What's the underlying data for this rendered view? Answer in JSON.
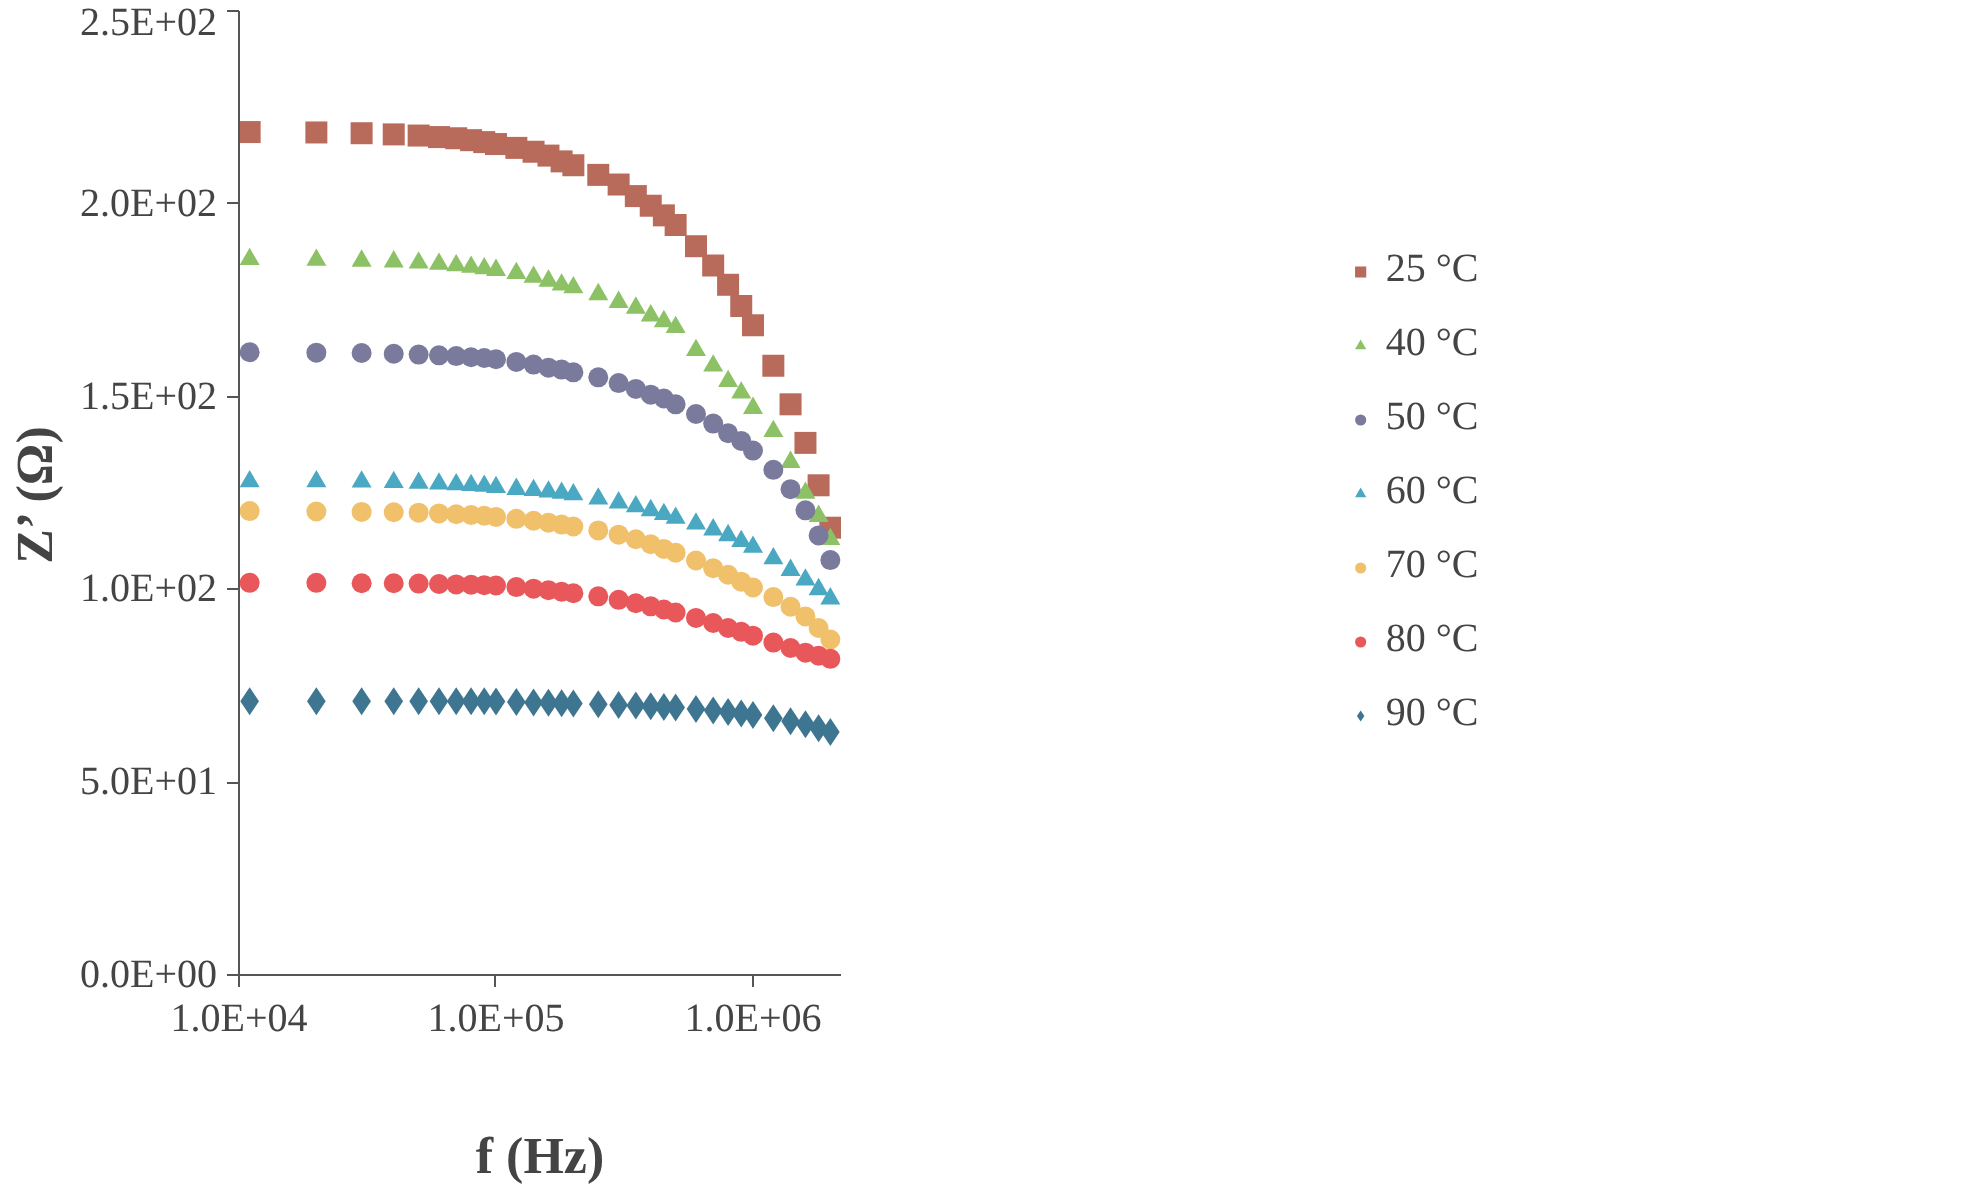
{
  "chart_data": {
    "type": "scatter",
    "xlabel": "f (Hz)",
    "ylabel": "Z’ (Ω)",
    "log": "x",
    "grid": false,
    "legend": "right",
    "xlim": [
      10000,
      2200000
    ],
    "xticks": [
      {
        "value": 10000,
        "label": "1.0E+04"
      },
      {
        "value": 100000,
        "label": "1.0E+05"
      },
      {
        "value": 1000000,
        "label": "1.0E+06"
      }
    ],
    "ylim": [
      0,
      250
    ],
    "yticks": [
      {
        "value": 0,
        "label": "0.0E+00"
      },
      {
        "value": 50,
        "label": "5.0E+01"
      },
      {
        "value": 100,
        "label": "1.0E+02"
      },
      {
        "value": 150,
        "label": "1.5E+02"
      },
      {
        "value": 200,
        "label": "2.0E+02"
      },
      {
        "value": 250,
        "label": "2.5E+02"
      }
    ],
    "x": [
      11000,
      20000,
      30000,
      40000,
      50000,
      60000,
      70000,
      80000,
      90000,
      100000,
      120000,
      140000,
      160000,
      180000,
      200000,
      250000,
      300000,
      350000,
      400000,
      450000,
      500000,
      600000,
      700000,
      800000,
      900000,
      1000000,
      1200000,
      1400000,
      1600000,
      1800000,
      2000000
    ],
    "series": [
      {
        "name": "25 °C",
        "color": "#b86b5a",
        "marker": "square",
        "values": [
          218.6,
          218.5,
          218.3,
          218,
          217.7,
          217.3,
          217,
          216.5,
          216,
          215.5,
          214.5,
          213.5,
          212.5,
          211,
          210,
          207.5,
          205,
          202,
          199.5,
          197,
          194.5,
          189,
          184,
          179,
          173.5,
          168.5,
          158,
          148,
          138,
          127,
          116
        ]
      },
      {
        "name": "40 °C",
        "color": "#8dc165",
        "marker": "triangle",
        "values": [
          185.6,
          185.4,
          185.2,
          185,
          184.7,
          184.4,
          184,
          183.6,
          183.2,
          182.8,
          182,
          181,
          180,
          179,
          178.3,
          176.5,
          174.5,
          173,
          171,
          169.5,
          168,
          162,
          158,
          154,
          151,
          147,
          141,
          133,
          125,
          119,
          113
        ]
      },
      {
        "name": "50 °C",
        "color": "#7a7a9c",
        "marker": "circle",
        "values": [
          161.5,
          161.4,
          161.3,
          161.1,
          160.9,
          160.7,
          160.5,
          160.2,
          160,
          159.7,
          159,
          158.3,
          157.5,
          157,
          156.3,
          155,
          153.5,
          152,
          150.5,
          149.5,
          148,
          145.5,
          143,
          140.5,
          138.5,
          136,
          131,
          126,
          120.5,
          114,
          107.6
        ]
      },
      {
        "name": "60 °C",
        "color": "#4aa8c2",
        "marker": "triangle",
        "values": [
          128,
          128,
          127.9,
          127.8,
          127.6,
          127.4,
          127.2,
          127,
          126.8,
          126.5,
          126,
          125.7,
          125.3,
          125,
          124.6,
          123.5,
          122.5,
          121.5,
          120.5,
          119.5,
          118.5,
          117,
          115.5,
          114,
          112.5,
          111,
          108,
          105,
          102.5,
          100,
          97.6
        ]
      },
      {
        "name": "70 °C",
        "color": "#f0c06a",
        "marker": "circle",
        "values": [
          120.3,
          120.2,
          120.1,
          120,
          119.9,
          119.7,
          119.5,
          119.3,
          119.1,
          118.8,
          118.3,
          117.8,
          117.3,
          116.8,
          116.3,
          115.3,
          114.2,
          113,
          111.7,
          110.5,
          109.5,
          107.5,
          105.5,
          103.8,
          102,
          100.5,
          98,
          95.5,
          93,
          90,
          87
        ]
      },
      {
        "name": "80 °C",
        "color": "#e8575a",
        "marker": "circle",
        "values": [
          101.7,
          101.7,
          101.6,
          101.6,
          101.5,
          101.4,
          101.3,
          101.2,
          101.1,
          101,
          100.6,
          100.2,
          99.8,
          99.4,
          99,
          98.2,
          97.3,
          96.4,
          95.6,
          94.8,
          94,
          92.6,
          91.3,
          90,
          89,
          88,
          86.2,
          84.8,
          83.6,
          82.8,
          82
        ]
      },
      {
        "name": "90 °C",
        "color": "#3e7590",
        "marker": "diamond",
        "values": [
          71,
          71,
          71,
          71,
          71,
          71,
          71,
          71,
          71,
          70.9,
          70.8,
          70.7,
          70.6,
          70.5,
          70.4,
          70.2,
          70,
          69.9,
          69.7,
          69.5,
          69.4,
          69,
          68.6,
          68.2,
          67.8,
          67.4,
          66.6,
          65.8,
          65,
          64,
          63
        ]
      }
    ]
  }
}
